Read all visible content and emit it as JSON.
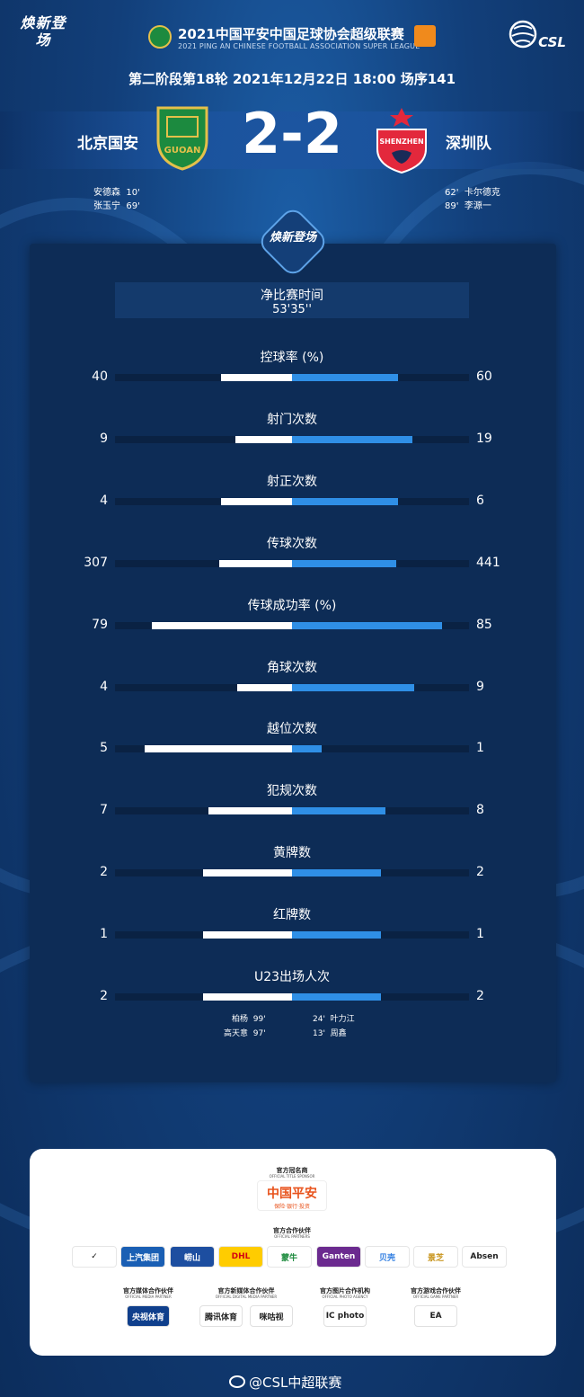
{
  "header": {
    "brand": "焕新登场",
    "league_title": "2021中国平安中国足球协会超级联赛",
    "league_subtitle": "2021 PING AN CHINESE FOOTBALL ASSOCIATION SUPER LEAGUE",
    "csl": "CSL"
  },
  "match": {
    "round_info": "第二阶段第18轮  2021年12月22日 18:00 场序141",
    "home_team": "北京国安",
    "away_team": "深圳队",
    "score": "2-2",
    "home_crest_text": "GUOAN",
    "away_crest_text": "SHENZHEN",
    "home_scorers": [
      {
        "name": "安德森",
        "minute": "10'"
      },
      {
        "name": "张玉宁",
        "minute": "69'"
      }
    ],
    "away_scorers": [
      {
        "minute": "62'",
        "name": "卡尔德克"
      },
      {
        "minute": "89'",
        "name": "李源一"
      }
    ]
  },
  "stats": {
    "badge": "焕新登场",
    "net_time_label": "净比赛时间",
    "net_time_value": "53'35''",
    "items": [
      {
        "label": "控球率 (%)",
        "home": "40",
        "away": "60",
        "home_share": 0.4,
        "away_share": 0.6
      },
      {
        "label": "射门次数",
        "home": "9",
        "away": "19",
        "home_share": 0.32,
        "away_share": 0.68
      },
      {
        "label": "射正次数",
        "home": "4",
        "away": "6",
        "home_share": 0.4,
        "away_share": 0.6
      },
      {
        "label": "传球次数",
        "home": "307",
        "away": "441",
        "home_share": 0.41,
        "away_share": 0.59
      },
      {
        "label": "传球成功率 (%)",
        "home": "79",
        "away": "85",
        "home_share": 0.79,
        "away_share": 0.85
      },
      {
        "label": "角球次数",
        "home": "4",
        "away": "9",
        "home_share": 0.31,
        "away_share": 0.69
      },
      {
        "label": "越位次数",
        "home": "5",
        "away": "1",
        "home_share": 0.83,
        "away_share": 0.17
      },
      {
        "label": "犯规次数",
        "home": "7",
        "away": "8",
        "home_share": 0.47,
        "away_share": 0.53
      },
      {
        "label": "黄牌数",
        "home": "2",
        "away": "2",
        "home_share": 0.5,
        "away_share": 0.5
      },
      {
        "label": "红牌数",
        "home": "1",
        "away": "1",
        "home_share": 0.5,
        "away_share": 0.5
      },
      {
        "label": "U23出场人次",
        "home": "2",
        "away": "2",
        "home_share": 0.5,
        "away_share": 0.5
      }
    ],
    "u23_home": [
      {
        "name": "柏杨",
        "minute": "99'"
      },
      {
        "name": "高天意",
        "minute": "97'"
      }
    ],
    "u23_away": [
      {
        "minute": "24'",
        "name": "叶力江"
      },
      {
        "minute": "13'",
        "name": "周鑫"
      }
    ]
  },
  "sponsors": {
    "title_sponsor_label": "官方冠名商",
    "title_sponsor_sub": "OFFICIAL TITLE SPONSOR",
    "title_sponsor": {
      "name": "中国平安",
      "sub": "保险·银行·投资"
    },
    "partners_label": "官方合作伙伴",
    "partners_sub": "OFFICIAL PARTNERS",
    "partners": [
      {
        "name": "✓",
        "bg": "#ffffff",
        "fg": "#111111"
      },
      {
        "name": "上汽集团",
        "bg": "#1a5fb4",
        "fg": "#ffffff"
      },
      {
        "name": "崂山",
        "bg": "#1d4ea0",
        "fg": "#ffffff"
      },
      {
        "name": "DHL",
        "bg": "#ffcc00",
        "fg": "#d40511"
      },
      {
        "name": "蒙牛",
        "bg": "#ffffff",
        "fg": "#1b8a3c"
      },
      {
        "name": "Ganten",
        "bg": "#6b2a8f",
        "fg": "#ffffff"
      },
      {
        "name": "贝壳",
        "bg": "#ffffff",
        "fg": "#2f7de1"
      },
      {
        "name": "景芝",
        "bg": "#ffffff",
        "fg": "#c8941c"
      },
      {
        "name": "Absen",
        "bg": "#ffffff",
        "fg": "#222222"
      }
    ],
    "media_groups": [
      {
        "label": "官方媒体合作伙伴",
        "sub": "OFFICIAL MEDIA PARTNER",
        "logos": [
          "央视体育"
        ]
      },
      {
        "label": "官方新媒体合作伙伴",
        "sub": "OFFICIAL DIGITAL MEDIA PARTNER",
        "logos": [
          "腾讯体育",
          "咪咕视"
        ]
      },
      {
        "label": "官方图片合作机构",
        "sub": "OFFICIAL PHOTO AGENCY",
        "logos": [
          "IC photo"
        ]
      },
      {
        "label": "官方游戏合作伙伴",
        "sub": "OFFICIAL GAME PARTNER",
        "logos": [
          "EA"
        ]
      }
    ]
  },
  "footer": {
    "weibo": "@CSL中超联赛"
  }
}
